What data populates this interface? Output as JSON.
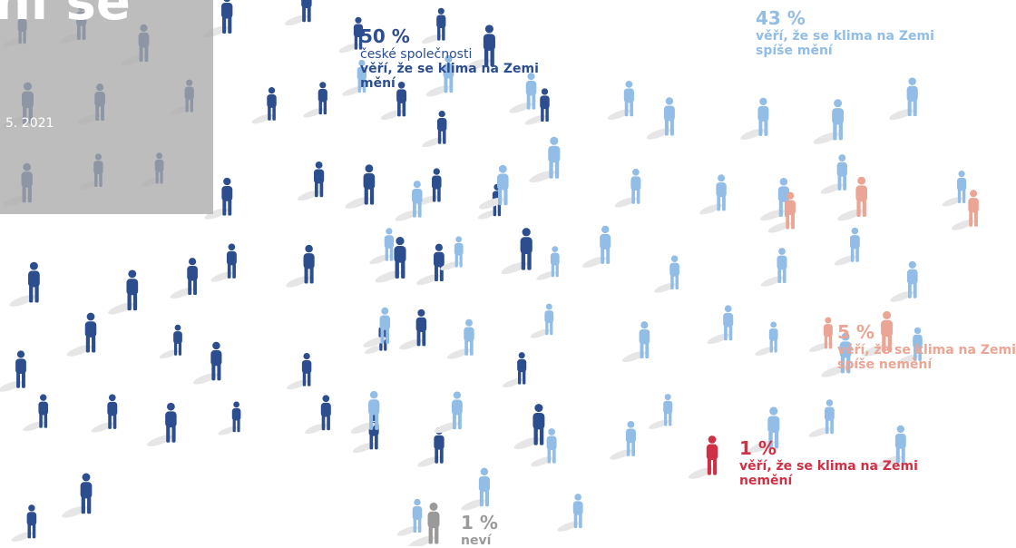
{
  "chart_data": {
    "type": "pictogram",
    "series": [
      {
        "lead": "české společnosti",
        "name": "věří, že se klima na Zemi mění",
        "color": "#2c4d8e",
        "values": [
          50
        ],
        "value_labels": [
          "50 %"
        ]
      },
      {
        "name": "věří, že se klima na Zemi spíše mění",
        "color": "#92bde6",
        "values": [
          43
        ],
        "value_labels": [
          "43 %"
        ]
      },
      {
        "name": "věří, že se klima na Zemi spíše nemění",
        "color": "#eaa594",
        "values": [
          5
        ],
        "value_labels": [
          "5 %"
        ]
      },
      {
        "name": "věří, že se klima na Zemi nemění",
        "color": "#cf3045",
        "values": [
          1
        ],
        "value_labels": [
          "1 %"
        ]
      },
      {
        "name": "neví",
        "color": "#9a9a9a",
        "values": [
          1
        ],
        "value_labels": [
          "1 %"
        ]
      }
    ]
  },
  "overlay": {
    "title_fragment": "ní se",
    "date": "5. 2021"
  }
}
